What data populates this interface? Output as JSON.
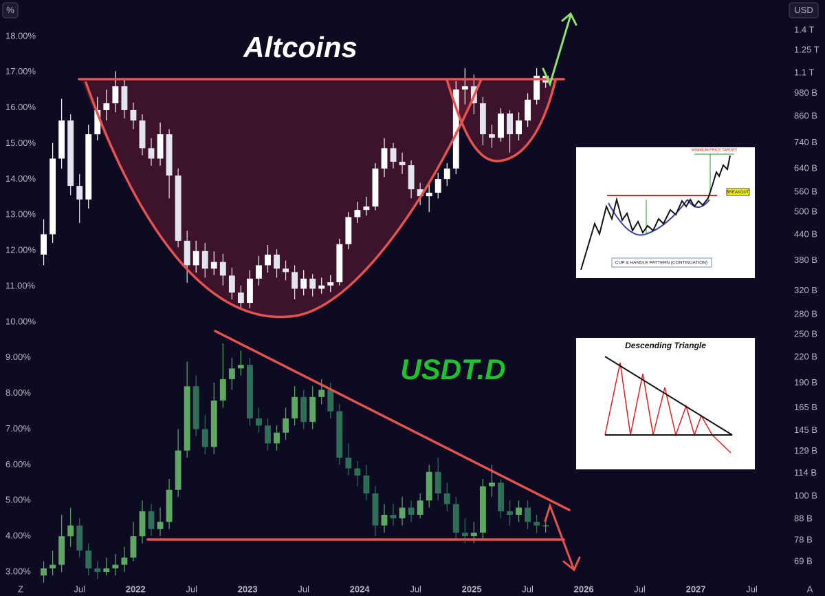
{
  "chart_data": {
    "type": "candlestick",
    "y_unit": "%",
    "y2_unit": "USD",
    "corner_buttons": [
      "Z",
      "A"
    ],
    "xlim": [
      2020.79,
      2027.785
    ],
    "xticks": [
      {
        "value": 2021.5,
        "label": "Jul"
      },
      2022,
      {
        "value": 2022.5,
        "label": "Jul"
      },
      2023,
      {
        "value": 2023.5,
        "label": "Jul"
      },
      2024,
      {
        "value": 2024.5,
        "label": "Jul"
      },
      2025,
      {
        "value": 2025.5,
        "label": "Jul"
      },
      2026,
      {
        "value": 2026.5,
        "label": "Jul"
      },
      2027,
      {
        "value": 2027.5,
        "label": "Jul"
      }
    ],
    "ylim": [
      2.73,
      19.02
    ],
    "yticks": [
      {
        "value": 18,
        "label": "18.00%"
      },
      {
        "value": 17,
        "label": "17.00%"
      },
      {
        "value": 16,
        "label": "16.00%"
      },
      {
        "value": 15,
        "label": "15.00%"
      },
      {
        "value": 14,
        "label": "14.00%"
      },
      {
        "value": 13,
        "label": "13.00%"
      },
      {
        "value": 12,
        "label": "12.00%"
      },
      {
        "value": 11,
        "label": "11.00%"
      },
      {
        "value": 10,
        "label": "10.00%"
      },
      {
        "value": 9,
        "label": "9.00%"
      },
      {
        "value": 8,
        "label": "8.00%"
      },
      {
        "value": 7,
        "label": "7.00%"
      },
      {
        "value": 6,
        "label": "6.00%"
      },
      {
        "value": 5,
        "label": "5.00%"
      },
      {
        "value": 4,
        "label": "4.00%"
      },
      {
        "value": 3,
        "label": "3.00%"
      }
    ],
    "y2lim": [
      61.7,
      1662
    ],
    "y2scale": "log",
    "y2ticks": [
      {
        "value": 1400,
        "label": "1.4 T"
      },
      {
        "value": 1250,
        "label": "1.25 T"
      },
      {
        "value": 1100,
        "label": "1.1 T"
      },
      {
        "value": 980,
        "label": "980 B"
      },
      {
        "value": 860,
        "label": "860 B"
      },
      {
        "value": 740,
        "label": "740 B"
      },
      {
        "value": 640,
        "label": "640 B"
      },
      {
        "value": 560,
        "label": "560 B"
      },
      {
        "value": 500,
        "label": "500 B"
      },
      {
        "value": 440,
        "label": "440 B"
      },
      {
        "value": 380,
        "label": "380 B"
      },
      {
        "value": 320,
        "label": "320 B"
      },
      {
        "value": 280,
        "label": "280 B"
      },
      {
        "value": 250,
        "label": "250 B"
      },
      {
        "value": 220,
        "label": "220 B"
      },
      {
        "value": 190,
        "label": "190 B"
      },
      {
        "value": 165,
        "label": "165 B"
      },
      {
        "value": 145,
        "label": "145 B"
      },
      {
        "value": 129,
        "label": "129 B"
      },
      {
        "value": 114,
        "label": "114 B"
      },
      {
        "value": 100,
        "label": "100 B"
      },
      {
        "value": 88,
        "label": "88 B"
      },
      {
        "value": 78,
        "label": "78 B"
      },
      {
        "value": 69,
        "label": "69 B"
      }
    ],
    "x": [
      2021.18,
      2021.26,
      2021.34,
      2021.42,
      2021.5,
      2021.58,
      2021.66,
      2021.74,
      2021.82,
      2021.9,
      2021.98,
      2022.06,
      2022.14,
      2022.22,
      2022.3,
      2022.38,
      2022.46,
      2022.54,
      2022.62,
      2022.7,
      2022.78,
      2022.86,
      2022.94,
      2023.02,
      2023.1,
      2023.18,
      2023.26,
      2023.34,
      2023.42,
      2023.5,
      2023.58,
      2023.66,
      2023.74,
      2023.82,
      2023.9,
      2023.98,
      2024.06,
      2024.14,
      2024.22,
      2024.3,
      2024.38,
      2024.46,
      2024.54,
      2024.62,
      2024.7,
      2024.78,
      2024.86,
      2024.94,
      2025.02,
      2025.1,
      2025.18,
      2025.26,
      2025.34,
      2025.42,
      2025.5,
      2025.58,
      2025.66
    ],
    "series": [
      {
        "name": "Altcoins",
        "axis": "y2",
        "color": "#ffffff",
        "down_color": "#e4e4ee",
        "open": [
          393,
          441,
          677,
          840,
          580,
          537,
          777,
          891,
          926,
          1020,
          891,
          840,
          718,
          677,
          777,
          615,
          425,
          370,
          401,
          363,
          377,
          349,
          317,
          299,
          343,
          370,
          393,
          363,
          356,
          324,
          343,
          324,
          330,
          336,
          417,
          486,
          506,
          516,
          640,
          718,
          665,
          652,
          569,
          547,
          558,
          603,
          640,
          1001,
          1020,
          926,
          777,
          762,
          874,
          777,
          840,
          945,
          1082
        ],
        "high": [
          480,
          740,
          950,
          870,
          620,
          820,
          960,
          1000,
          1110,
          1060,
          930,
          870,
          760,
          830,
          800,
          640,
          450,
          425,
          420,
          400,
          395,
          365,
          330,
          360,
          390,
          415,
          405,
          380,
          370,
          360,
          352,
          345,
          350,
          430,
          500,
          530,
          545,
          660,
          760,
          740,
          700,
          670,
          590,
          590,
          625,
          660,
          1050,
          1130,
          1090,
          960,
          820,
          900,
          890,
          880,
          980,
          1130,
          1100
        ],
        "low": [
          370,
          420,
          640,
          550,
          470,
          510,
          750,
          840,
          880,
          850,
          800,
          690,
          650,
          650,
          540,
          410,
          335,
          355,
          345,
          350,
          330,
          305,
          288,
          290,
          330,
          355,
          345,
          340,
          305,
          312,
          310,
          315,
          318,
          330,
          405,
          470,
          490,
          505,
          610,
          640,
          620,
          540,
          520,
          500,
          540,
          580,
          620,
          920,
          870,
          730,
          720,
          745,
          700,
          750,
          810,
          920,
          1010
        ],
        "close": [
          441,
          677,
          840,
          580,
          537,
          777,
          891,
          926,
          1020,
          891,
          840,
          718,
          677,
          777,
          615,
          425,
          370,
          401,
          363,
          377,
          349,
          317,
          299,
          343,
          370,
          393,
          363,
          356,
          324,
          343,
          324,
          330,
          336,
          417,
          486,
          506,
          516,
          640,
          718,
          665,
          652,
          569,
          547,
          558,
          603,
          640,
          1001,
          1020,
          926,
          777,
          762,
          874,
          777,
          840,
          945,
          1082,
          1041
        ]
      },
      {
        "name": "USDT.D",
        "color": "#5fa863",
        "down_color": "#2f6f57",
        "open": [
          2.9,
          3.1,
          3.2,
          4.0,
          4.3,
          3.6,
          3.1,
          3.0,
          3.1,
          3.2,
          3.4,
          4.0,
          4.7,
          4.2,
          4.4,
          5.3,
          6.4,
          8.2,
          7.0,
          6.5,
          7.8,
          8.4,
          8.7,
          8.8,
          7.3,
          7.1,
          6.6,
          6.9,
          7.3,
          7.9,
          7.2,
          7.9,
          8.1,
          7.5,
          6.2,
          5.9,
          5.7,
          5.2,
          4.3,
          4.6,
          4.5,
          4.8,
          4.6,
          5.0,
          5.8,
          5.2,
          4.9,
          4.1,
          4.0,
          4.1,
          5.4,
          5.5,
          4.7,
          4.6,
          4.8,
          4.4,
          4.3
        ],
        "high": [
          3.3,
          3.6,
          4.6,
          4.8,
          4.5,
          3.8,
          3.3,
          3.4,
          3.5,
          3.7,
          4.4,
          5.0,
          4.9,
          4.8,
          5.6,
          7.0,
          8.9,
          8.5,
          7.4,
          8.3,
          9.4,
          9.0,
          9.2,
          9.0,
          7.6,
          7.3,
          7.1,
          7.6,
          8.2,
          8.1,
          8.2,
          8.4,
          8.3,
          7.7,
          6.6,
          6.1,
          6.0,
          5.4,
          4.9,
          4.9,
          5.1,
          5.0,
          5.2,
          6.0,
          6.2,
          5.5,
          5.1,
          4.5,
          4.4,
          5.6,
          6.0,
          5.6,
          5.0,
          5.0,
          5.0,
          4.6,
          4.5
        ],
        "low": [
          2.7,
          2.9,
          3.0,
          3.7,
          3.4,
          2.9,
          2.8,
          2.9,
          2.9,
          3.0,
          3.3,
          3.8,
          4.0,
          4.0,
          4.2,
          5.1,
          6.2,
          6.8,
          6.3,
          6.3,
          7.6,
          8.1,
          8.5,
          7.1,
          6.9,
          6.4,
          6.4,
          6.7,
          7.1,
          7.0,
          7.0,
          7.7,
          7.3,
          6.0,
          5.7,
          5.4,
          5.0,
          4.0,
          4.1,
          4.3,
          4.3,
          4.4,
          4.5,
          4.8,
          5.0,
          4.7,
          3.9,
          3.8,
          3.8,
          3.9,
          5.1,
          4.5,
          4.3,
          4.4,
          4.2,
          4.1,
          4.1
        ],
        "close": [
          3.1,
          3.2,
          4.0,
          4.3,
          3.6,
          3.1,
          3.0,
          3.1,
          3.2,
          3.4,
          4.0,
          4.7,
          4.2,
          4.4,
          5.3,
          6.4,
          8.2,
          7.0,
          6.5,
          7.8,
          8.4,
          8.7,
          8.8,
          7.3,
          7.1,
          6.6,
          6.9,
          7.3,
          7.9,
          7.2,
          7.9,
          8.1,
          7.5,
          6.2,
          5.9,
          5.7,
          5.2,
          4.3,
          4.6,
          4.5,
          4.8,
          4.6,
          5.0,
          5.8,
          5.2,
          4.9,
          4.1,
          4.0,
          4.1,
          5.4,
          5.5,
          4.7,
          4.6,
          4.8,
          4.4,
          4.3,
          4.3
        ]
      }
    ],
    "annotations": [
      "MINIMUM PRICE TARGET",
      "BREAKOUT",
      "CUP & HANDLE PATTERN (CONTINUATION)",
      "Descending Triangle"
    ]
  }
}
